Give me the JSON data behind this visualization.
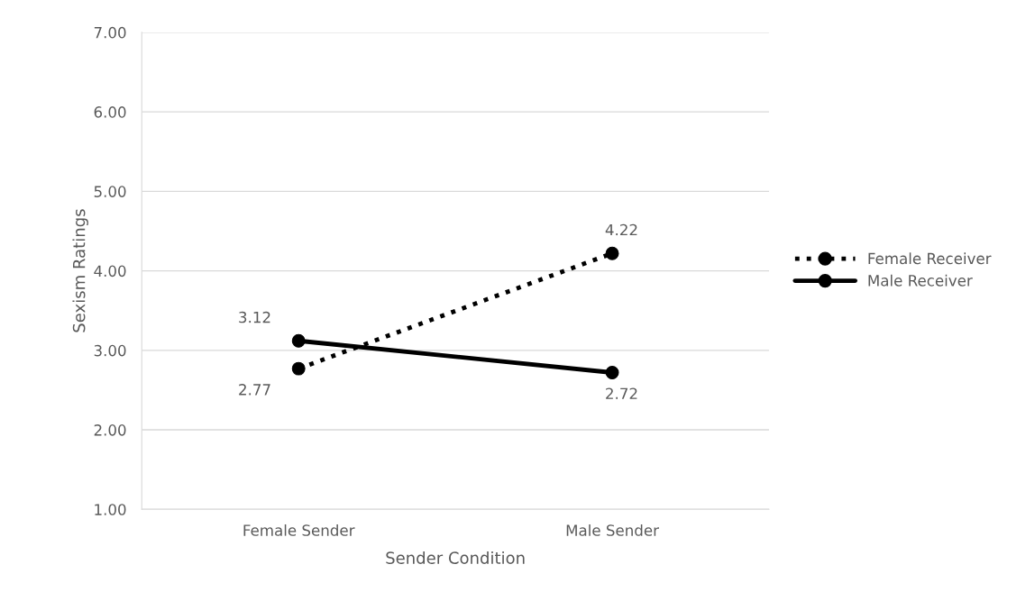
{
  "chart_data": {
    "type": "line",
    "xlabel": "Sender Condition",
    "ylabel": "Sexism Ratings",
    "categories": [
      "Female Sender",
      "Male Sender"
    ],
    "series": [
      {
        "name": "Female Receiver",
        "color": "#000000",
        "values": [
          2.77,
          4.22
        ],
        "line_style": "dotted"
      },
      {
        "name": "Male Receiver",
        "color": "#000000",
        "values": [
          3.12,
          2.72
        ],
        "line_style": "solid"
      }
    ],
    "ylim": [
      1,
      7
    ],
    "yticks": [
      {
        "value": 1,
        "label": "1.00"
      },
      {
        "value": 2,
        "label": "2.00"
      },
      {
        "value": 3,
        "label": "3.00"
      },
      {
        "value": 4,
        "label": "4.00"
      },
      {
        "value": 5,
        "label": "5.00"
      },
      {
        "value": 6,
        "label": "6.00"
      },
      {
        "value": 7,
        "label": "7.00"
      }
    ],
    "grid": "y",
    "legend": "right",
    "marker": "circle",
    "data_labels": true
  }
}
